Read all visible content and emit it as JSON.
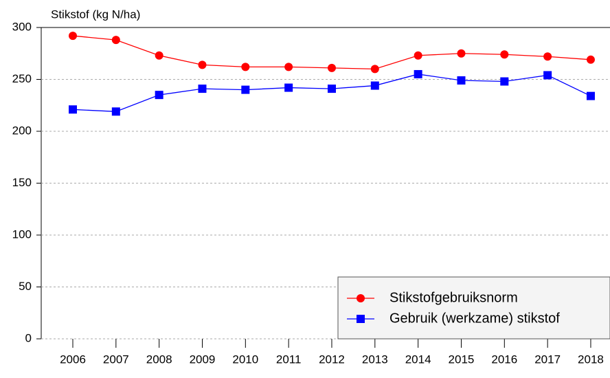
{
  "chart_data": {
    "type": "line",
    "y_label": "Stikstof (kg N/ha)",
    "categories": [
      "2006",
      "2007",
      "2008",
      "2009",
      "2010",
      "2011",
      "2012",
      "2013",
      "2014",
      "2015",
      "2016",
      "2017",
      "2018"
    ],
    "series": [
      {
        "name": "Stikstofgebruiksnorm",
        "color": "#ff0000",
        "marker": "circle",
        "values": [
          292,
          288,
          273,
          264,
          262,
          262,
          261,
          260,
          273,
          275,
          274,
          272,
          269
        ]
      },
      {
        "name": "Gebruik (werkzame) stikstof",
        "color": "#0000ff",
        "marker": "square",
        "values": [
          221,
          219,
          235,
          241,
          240,
          242,
          241,
          244,
          255,
          249,
          248,
          254,
          234
        ]
      }
    ],
    "ylim": [
      0,
      300
    ],
    "yticks": [
      0,
      50,
      100,
      150,
      200,
      250,
      300
    ],
    "grid": true,
    "legend": "lower right"
  }
}
